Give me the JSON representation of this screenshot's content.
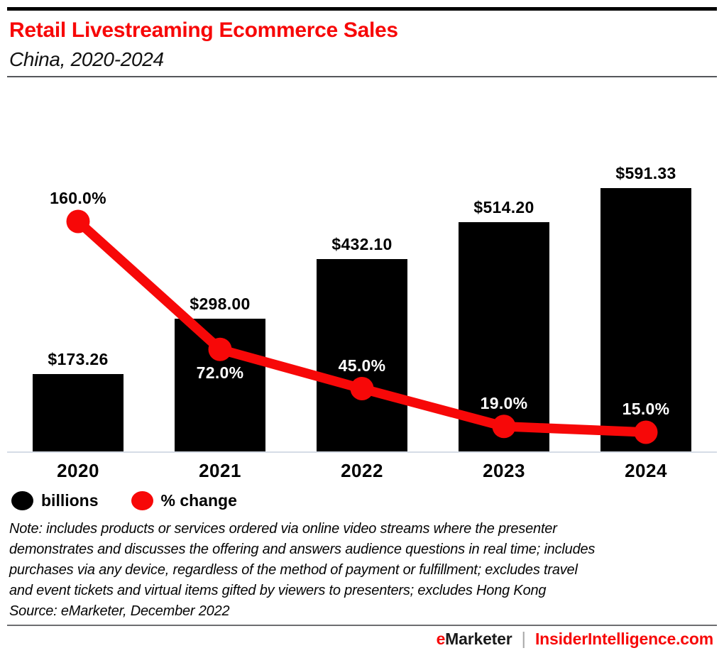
{
  "header": {
    "title": "Retail Livestreaming Ecommerce Sales",
    "subtitle": "China, 2020-2024"
  },
  "chart_data": {
    "type": "combo",
    "categories": [
      "2020",
      "2021",
      "2022",
      "2023",
      "2024"
    ],
    "series": [
      {
        "name": "billions",
        "type": "bar",
        "color": "#000000",
        "values": [
          173.26,
          298.0,
          432.1,
          514.2,
          591.33
        ],
        "labels": [
          "$173.26",
          "$298.00",
          "$432.10",
          "$514.20",
          "$591.33"
        ]
      },
      {
        "name": "% change",
        "type": "line",
        "color": "#F70808",
        "values": [
          160.0,
          72.0,
          45.0,
          19.0,
          15.0
        ],
        "labels": [
          "160.0%",
          "72.0%",
          "45.0%",
          "19.0%",
          "15.0%"
        ]
      }
    ],
    "title": "Retail Livestreaming Ecommerce Sales",
    "subtitle": "China, 2020-2024",
    "xlabel": "",
    "ylabel": "",
    "bar_unit": "US$ billions",
    "grid": false,
    "legend_position": "bottom-left",
    "bar_axis_range": [
      0,
      700
    ],
    "line_axis_range": [
      0,
      180
    ]
  },
  "legend": {
    "items": [
      {
        "label": "billions",
        "color": "#000000"
      },
      {
        "label": "% change",
        "color": "#F70808"
      }
    ]
  },
  "note": {
    "lines": [
      "Note: includes products or services ordered via online video streams where the presenter",
      "demonstrates and discusses the offering and answers audience questions in real time; includes",
      "purchases via any device, regardless of the method of payment or fulfillment; excludes travel",
      "and event tickets and virtual items gifted by viewers to presenters; excludes Hong Kong"
    ],
    "source": "Source: eMarketer, December 2022"
  },
  "footer": {
    "brand_first_letter": "e",
    "brand_rest": "Marketer",
    "separator": "|",
    "site": "InsiderIntelligence.com"
  },
  "colors": {
    "accent_red": "#F70808",
    "bar_black": "#000000",
    "axis_line": "#D5DCE6",
    "header_divider": "#54565A",
    "footer_divider": "#6D6E71"
  }
}
